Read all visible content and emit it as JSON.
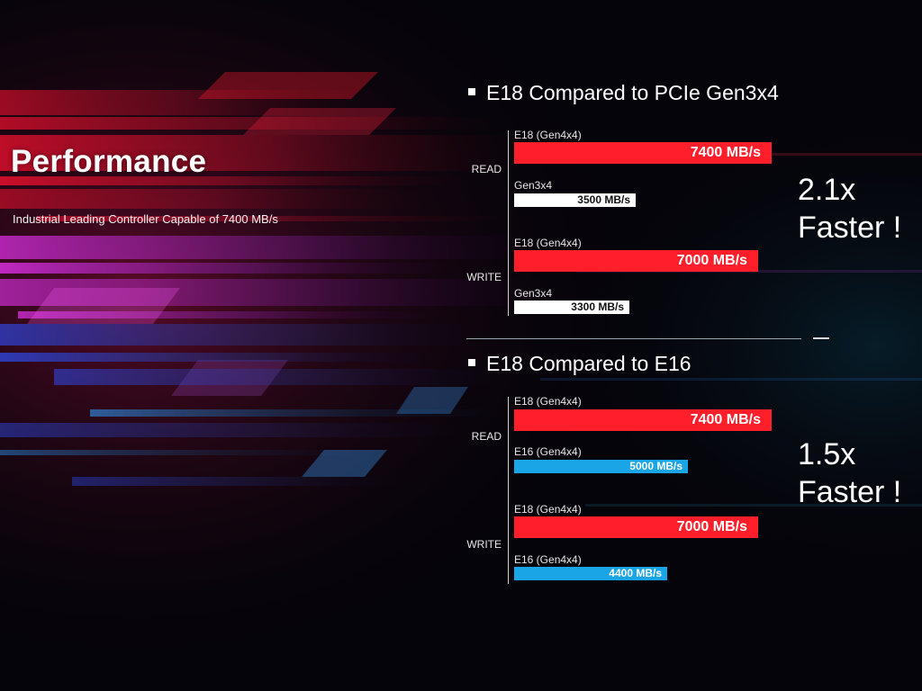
{
  "hero": {
    "title": "Performance",
    "subtitle": "Industrial Leading Controller Capable of 7400 MB/s"
  },
  "chart_data": [
    {
      "type": "bar",
      "orientation": "horizontal",
      "title": "E18 Compared to PCIe Gen3x4",
      "groups": [
        "READ",
        "WRITE"
      ],
      "unit": "MB/s",
      "bars": [
        {
          "group": "READ",
          "label": "E18 (Gen4x4)",
          "value": 7400,
          "value_text": "7400 MB/s",
          "color": "#ff1f2a",
          "size": "big"
        },
        {
          "group": "READ",
          "label": "Gen3x4",
          "value": 3500,
          "value_text": "3500 MB/s",
          "color": "#ffffff",
          "size": "small"
        },
        {
          "group": "WRITE",
          "label": "E18 (Gen4x4)",
          "value": 7000,
          "value_text": "7000 MB/s",
          "color": "#ff1f2a",
          "size": "big"
        },
        {
          "group": "WRITE",
          "label": "Gen3x4",
          "value": 3300,
          "value_text": "3300 MB/s",
          "color": "#ffffff",
          "size": "small"
        }
      ],
      "annotation": [
        "2.1x",
        "Faster !"
      ]
    },
    {
      "type": "bar",
      "orientation": "horizontal",
      "title": "E18 Compared to E16",
      "groups": [
        "READ",
        "WRITE"
      ],
      "unit": "MB/s",
      "bars": [
        {
          "group": "READ",
          "label": "E18 (Gen4x4)",
          "value": 7400,
          "value_text": "7400 MB/s",
          "color": "#ff1f2a",
          "size": "big"
        },
        {
          "group": "READ",
          "label": "E16 (Gen4x4)",
          "value": 5000,
          "value_text": "5000 MB/s",
          "color": "#1aa6e6",
          "size": "small"
        },
        {
          "group": "WRITE",
          "label": "E18 (Gen4x4)",
          "value": 7000,
          "value_text": "7000 MB/s",
          "color": "#ff1f2a",
          "size": "big"
        },
        {
          "group": "WRITE",
          "label": "E16 (Gen4x4)",
          "value": 4400,
          "value_text": "4400 MB/s",
          "color": "#1aa6e6",
          "size": "small"
        }
      ],
      "annotation": [
        "1.5x",
        "Faster !"
      ]
    }
  ]
}
